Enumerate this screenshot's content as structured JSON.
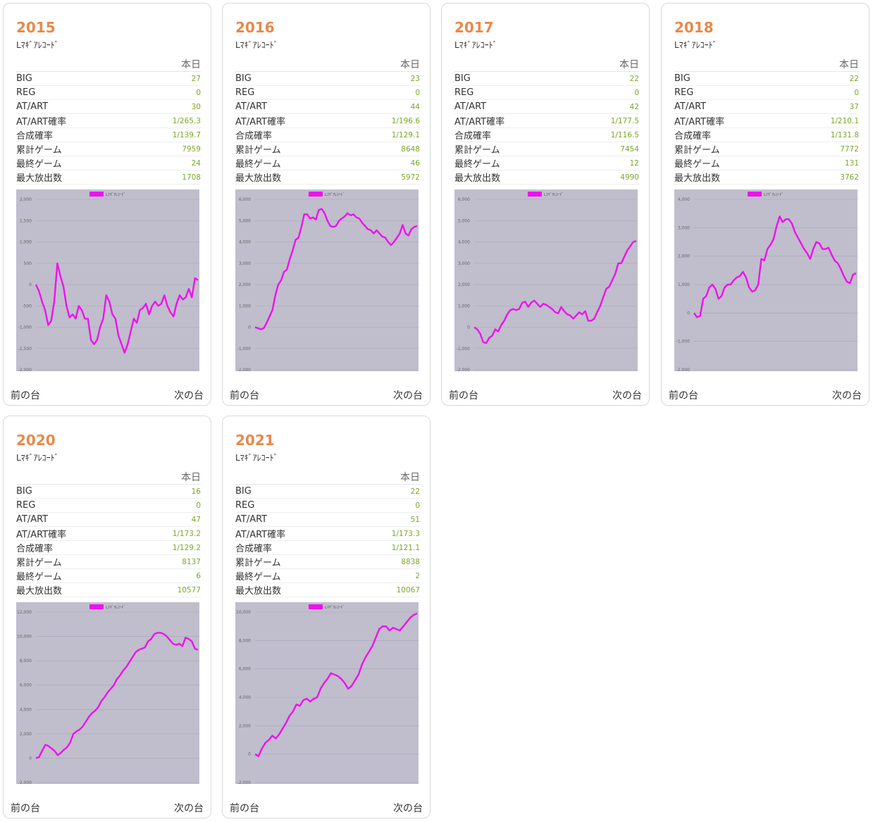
{
  "machine_name": "Lﾏｷﾞｱﾚｺｰﾄﾞ",
  "column_header": "本日",
  "stat_labels": [
    "BIG",
    "REG",
    "AT/ART",
    "AT/ART確率",
    "合成確率",
    "累計ゲーム",
    "最終ゲーム",
    "最大放出数"
  ],
  "nav": {
    "prev": "前の台",
    "next": "次の台"
  },
  "colors": {
    "title": "#e8894a",
    "value": "#7aa82b",
    "plot_bg": "#c0bdcc",
    "line": "#ee11ee"
  },
  "cards": [
    {
      "number": "2015",
      "stats": [
        "27",
        "0",
        "30",
        "1/265.3",
        "1/139.7",
        "7959",
        "24",
        "1708"
      ],
      "chart_data": {
        "type": "line",
        "legend": "Lﾏｷﾞｱﾚｺｰﾄﾞ",
        "legend_position": "top",
        "ylim": [
          -2000,
          2000
        ],
        "yticks": [
          "2,000",
          "1,500",
          "1,000",
          "500",
          "0",
          "-500",
          "-1,000",
          "-1,500",
          "-2,000"
        ],
        "grid": true,
        "series": [
          {
            "name": "Lﾏｷﾞｱﾚｺｰﾄﾞ",
            "values": [
              0,
              -150,
              -400,
              -600,
              -950,
              -850,
              -400,
              500,
              200,
              -50,
              -500,
              -770,
              -700,
              -800,
              -500,
              -600,
              -800,
              -800,
              -1300,
              -1400,
              -1300,
              -1000,
              -800,
              -250,
              -400,
              -700,
              -800,
              -1200,
              -1400,
              -1600,
              -1400,
              -1100,
              -800,
              -900,
              -600,
              -550,
              -450,
              -700,
              -500,
              -400,
              -500,
              -450,
              -250,
              -500,
              -650,
              -750,
              -450,
              -250,
              -350,
              -300,
              -100,
              -300,
              150,
              100
            ]
          }
        ]
      }
    },
    {
      "number": "2016",
      "stats": [
        "23",
        "0",
        "44",
        "1/196.6",
        "1/129.1",
        "8648",
        "46",
        "5972"
      ],
      "chart_data": {
        "type": "line",
        "legend": "Lﾏｷﾞｱﾚｺｰﾄﾞ",
        "legend_position": "top",
        "ylim": [
          -2000,
          6000
        ],
        "yticks": [
          "6,000",
          "5,000",
          "4,000",
          "3,000",
          "2,000",
          "1,000",
          "0",
          "-1,000",
          "-2,000"
        ],
        "grid": true,
        "series": [
          {
            "name": "Lﾏｷﾞｱﾚｺｰﾄﾞ",
            "values": [
              0,
              -50,
              -100,
              -50,
              200,
              500,
              800,
              1500,
              2000,
              2200,
              2600,
              2700,
              3200,
              3600,
              4100,
              4200,
              4700,
              5300,
              5300,
              5100,
              5150,
              5050,
              5500,
              5550,
              5350,
              5000,
              4750,
              4700,
              4750,
              5000,
              5100,
              5200,
              5350,
              5250,
              5300,
              5150,
              5100,
              4900,
              4750,
              4600,
              4550,
              4400,
              4550,
              4400,
              4250,
              4200,
              4000,
              3850,
              4000,
              4200,
              4400,
              4800,
              4400,
              4300,
              4600,
              4700,
              4750
            ]
          }
        ]
      }
    },
    {
      "number": "2017",
      "stats": [
        "22",
        "0",
        "42",
        "1/177.5",
        "1/116.5",
        "7454",
        "12",
        "4990"
      ],
      "chart_data": {
        "type": "line",
        "legend": "Lﾏｷﾞｱﾚｺｰﾄﾞ",
        "legend_position": "top",
        "ylim": [
          -2000,
          6000
        ],
        "yticks": [
          "6,000",
          "5,000",
          "4,000",
          "3,000",
          "2,000",
          "1,000",
          "0",
          "-1,000",
          "-2,000"
        ],
        "grid": true,
        "series": [
          {
            "name": "Lﾏｷﾞｱﾚｺｰﾄﾞ",
            "values": [
              0,
              -100,
              -300,
              -700,
              -750,
              -500,
              -400,
              -100,
              -200,
              100,
              300,
              600,
              800,
              850,
              800,
              850,
              1150,
              1200,
              950,
              1150,
              1250,
              1100,
              950,
              1100,
              1050,
              950,
              850,
              700,
              650,
              950,
              750,
              600,
              550,
              400,
              550,
              700,
              600,
              750,
              300,
              300,
              400,
              700,
              1000,
              1400,
              1800,
              1900,
              2200,
              2500,
              3000,
              3000,
              3300,
              3600,
              3800,
              4000,
              4050
            ]
          }
        ]
      }
    },
    {
      "number": "2018",
      "stats": [
        "22",
        "0",
        "37",
        "1/210.1",
        "1/131.8",
        "7772",
        "131",
        "3762"
      ],
      "chart_data": {
        "type": "line",
        "legend": "Lﾏｷﾞｱﾚｺｰﾄﾞ",
        "legend_position": "top",
        "ylim": [
          -2000,
          4000
        ],
        "yticks": [
          "4,000",
          "3,000",
          "2,000",
          "1,000",
          "0",
          "-1,000",
          "-2,000"
        ],
        "grid": true,
        "series": [
          {
            "name": "Lﾏｷﾞｱﾚｺｰﾄﾞ",
            "values": [
              0,
              -150,
              -100,
              500,
              600,
              900,
              1000,
              850,
              500,
              600,
              900,
              1000,
              1000,
              1150,
              1250,
              1300,
              1450,
              1250,
              900,
              750,
              800,
              1000,
              1900,
              1850,
              2250,
              2400,
              2600,
              3050,
              3400,
              3200,
              3300,
              3300,
              3150,
              2850,
              2650,
              2450,
              2250,
              2100,
              1900,
              2250,
              2500,
              2450,
              2250,
              2250,
              2300,
              2050,
              1850,
              1750,
              1550,
              1300,
              1100,
              1050,
              1350,
              1400
            ]
          }
        ]
      }
    },
    {
      "number": "2020",
      "stats": [
        "16",
        "0",
        "47",
        "1/173.2",
        "1/129.2",
        "8137",
        "6",
        "10577"
      ],
      "chart_data": {
        "type": "line",
        "legend": "Lﾏｷﾞｱﾚｺｰﾄﾞ",
        "legend_position": "top",
        "ylim": [
          -2000,
          12000
        ],
        "yticks": [
          "12,000",
          "10,000",
          "8,000",
          "6,000",
          "4,000",
          "2,000",
          "0",
          "-2,000"
        ],
        "grid": true,
        "series": [
          {
            "name": "Lﾏｷﾞｱﾚｺｰﾄﾞ",
            "values": [
              0,
              100,
              600,
              1100,
              1000,
              800,
              600,
              250,
              450,
              700,
              900,
              1300,
              2000,
              2200,
              2350,
              2600,
              3000,
              3400,
              3700,
              3900,
              4200,
              4700,
              5000,
              5400,
              5700,
              6000,
              6500,
              6800,
              7200,
              7500,
              7900,
              8300,
              8700,
              8900,
              9000,
              9100,
              9600,
              9800,
              10200,
              10300,
              10300,
              10200,
              10000,
              9700,
              9400,
              9300,
              9400,
              9200,
              9900,
              9800,
              9600,
              9000,
              8900
            ]
          }
        ]
      }
    },
    {
      "number": "2021",
      "stats": [
        "22",
        "0",
        "51",
        "1/173.3",
        "1/121.1",
        "8838",
        "2",
        "10067"
      ],
      "chart_data": {
        "type": "line",
        "legend": "Lﾏｷﾞｱﾚｺｰﾄﾞ",
        "legend_position": "top",
        "ylim": [
          -2000,
          10000
        ],
        "yticks": [
          "10,000",
          "8,000",
          "6,000",
          "4,000",
          "2,000",
          "0",
          "-2,000"
        ],
        "grid": true,
        "series": [
          {
            "name": "Lﾏｷﾞｱﾚｺｰﾄﾞ",
            "values": [
              0,
              -150,
              400,
              800,
              1000,
              1300,
              1100,
              1400,
              1800,
              2200,
              2700,
              3000,
              3500,
              3400,
              3800,
              3900,
              3700,
              3900,
              4000,
              4600,
              5000,
              5300,
              5700,
              5600,
              5500,
              5300,
              5000,
              4600,
              4800,
              5200,
              5600,
              6300,
              6800,
              7200,
              7600,
              8200,
              8800,
              9000,
              9000,
              8700,
              8900,
              8800,
              8700,
              9000,
              9300,
              9600,
              9800,
              9900
            ]
          }
        ]
      }
    }
  ]
}
